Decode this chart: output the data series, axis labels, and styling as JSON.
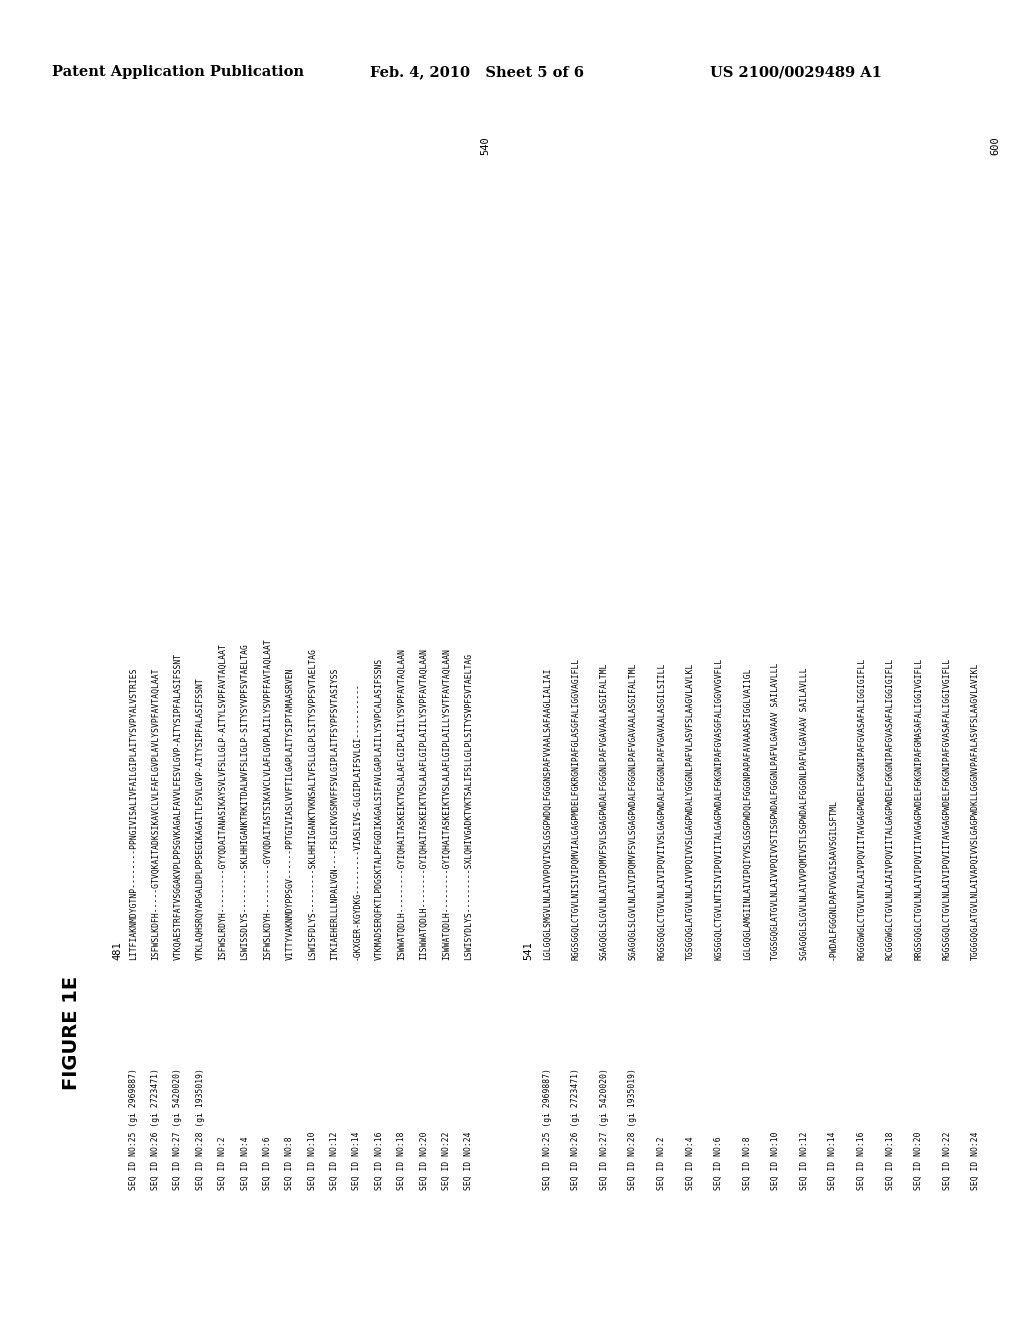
{
  "header_left": "Patent Application Publication",
  "header_center": "Feb. 4, 2010   Sheet 5 of 6",
  "header_right": "US 2100/0029489 A1",
  "figure_label": "FIGURE 1E",
  "background": "#ffffff",
  "block1_pos": "481",
  "block1_end": "540",
  "block1_rows": [
    {
      "seq_id": "SEQ ID NO:25 (gi 2969887)",
      "seq": "LITFIAKNMDYGTNP--------PPNGIVISALIVFAILGIPLAITYSVPYALVSTRIES"
    },
    {
      "seq_id": "SEQ ID NO:26 (gi 2723471)",
      "seq": "ISFWSLKDFH-----GTVQKAITADKSIKAVCLVLFAFLGVPLAVLYSVPFAVTAQLAAT"
    },
    {
      "seq_id": "SEQ ID NO:27 (gi 5420020)",
      "seq": "VTKQAESTRFATVSGGAKVPLPPSGVKAGALFAVVLFESVLGVP-AITYSIPFALASIFSSNT"
    },
    {
      "seq_id": "SEQ ID NO:28 (gi 1935019)",
      "seq": "VTKLAQHSRQYAPGALDPLPPSEGIKAGAITLFSVLGVP-AITYSIPFALASIFSSNT"
    },
    {
      "seq_id": "SEQ ID NO:2",
      "seq": "ISFWSLRDYH---------GYYQDAITANASIKAYSVLVFSLLGLP-AITYLSVPFAVTAQLAAT"
    },
    {
      "seq_id": "SEQ ID NO:4",
      "seq": "LSWISSDLYS---------SKLHHIGANKTRKITDALWVFSLIGLP-SITYSYVPFSVTAELTAG"
    },
    {
      "seq_id": "SEQ ID NO:6",
      "seq": "ISFWSLKDYH----------GYVQDAITASTSIKAVCLVLAFLGVPLAIILYSVPFFAVTAQLAAT"
    },
    {
      "seq_id": "SEQ ID NO:8",
      "seq": "VITTYVAKNMDYPPSGV------PPTGIVIASLVVFTILGAPLAITYSIPTAMAASRVEN"
    },
    {
      "seq_id": "SEQ ID NO:10",
      "seq": "LSWISFDLYS---------SKLHHIIGANKTVKNSALIVFSLLGLPLSITYSVPFSVTAELTAG"
    },
    {
      "seq_id": "SEQ ID NO:12",
      "seq": "ITKIAEHERLLLNPALVGN----FSLGIKVGSMVFFSVLGIPLAITFSYPFSVTASIYSS"
    },
    {
      "seq_id": "SEQ ID NO:14",
      "seq": "-GKXGER-KGYDKG---------VIASLIVS-GLGIPLAIFSVLGI-----------"
    },
    {
      "seq_id": "SEQ ID NO:16",
      "seq": "VTKMADSERQFKTLPDGSKTALPFGGDIKAGALSIFAVLGAPLAIILYSVPCALASIFSSNS"
    },
    {
      "seq_id": "SEQ ID NO:18",
      "seq": "ISWWATQDLH---------GYIQHAITASKEIKTVSLALAFLGIPLAIILYSVPFAVTAQLAAN"
    },
    {
      "seq_id": "SEQ ID NO:20",
      "seq": "IISWWATQDLH--------GYIQHAITASKEIKTVSLALAFLGIPLAIILYSVPFAVTAQLAAN"
    },
    {
      "seq_id": "SEQ ID NO:22",
      "seq": "ISWWATQDLH---------GYIQHAITASKEIKTVSLALAFLGIPLAILLYSVTFAVTAQLAAN"
    },
    {
      "seq_id": "SEQ ID NO:24",
      "seq": "LSWISYDLYS---------SXLQHIVGADKTVKTSALIFSLLGLPLSITYSVPFSVTAELTAG"
    }
  ],
  "block2_pos": "541",
  "block2_end": "600",
  "block2_rows": [
    {
      "seq_id": "SEQ ID NO:25 (gi 2969887)",
      "seq": "LGLGQGLSMGVLNLAIVVPQVIVSLGSGPWDQLFGGGNSPAFVVAALSAFAAGLIALIAI"
    },
    {
      "seq_id": "SEQ ID NO:26 (gi 2723471)",
      "seq": "RGGSGGQLCTGVLNISIVIPQMVIALGAGPMDELFGKRGNIPAFGLASGFALIGGVAGIFLL"
    },
    {
      "seq_id": "SEQ ID NO:27 (gi 5420020)",
      "seq": "SGAGQGLSLGVLNLAIVIPQMVFSVLSGAGPWDALFGGGNLPAFVGAVAALASGIFALTML"
    },
    {
      "seq_id": "SEQ ID NO:28 (gi 1935019)",
      "seq": "SGAGQGLSLGVLNLAIVIPQMVFSVLSGAGPWDALFGGGNLPAFVGAVAALASGIFALTML"
    },
    {
      "seq_id": "SEQ ID NO:2",
      "seq": "RGGSGQGLCTGVLNLAIVIPQVIIVSLGAGPWDALFGGGNLPAFVGAVAALASGILSIILL"
    },
    {
      "seq_id": "SEQ ID NO:4",
      "seq": "TGSGGQGLATGVLNLAIVVPQIVVSLGAGPWDALYGGGNLPAFVLASVFSLAAGVLAVLKL"
    },
    {
      "seq_id": "SEQ ID NO:6",
      "seq": "KGSGGQLCTGVLNTISIVIPQVIITALGAGPWDALFGKGNIPAFGVASGFALIGGVVGVFLL"
    },
    {
      "seq_id": "SEQ ID NO:8",
      "seq": "LGLGQGLAMGIINLAIVIPQIYVSLGSGPWDQLFGGGNPAPAFAVAAASFIGGLVAI1GL"
    },
    {
      "seq_id": "SEQ ID NO:10",
      "seq": "TGGSGQGLATGVLNLAIVVPQIVVSTISGPWDALFGGGNLPAFVLGAVAAV SAILAVLLL"
    },
    {
      "seq_id": "SEQ ID NO:12",
      "seq": "SGAGQGLSLGVLNLAIVVPQMIVSTLSGPWDALFGGGNLPAFVLGAVAAV SAILAVLLL"
    },
    {
      "seq_id": "SEQ ID NO:14",
      "seq": "-PWDALFGGGNLPAFVVGAISAAVSGILSFTML"
    },
    {
      "seq_id": "SEQ ID NO:16",
      "seq": "RGGGGWGLCTGVLNTALAIVPQVIITAVGAGPWDELFGKGNIPAFGVASAFALIGGIGIFLL"
    },
    {
      "seq_id": "SEQ ID NO:18",
      "seq": "RCGGGWGLCTGVLNLAIAIVPQVIITALGAGPWDELFGKGNIPAFGVASAFALIGGIGIFLL"
    },
    {
      "seq_id": "SEQ ID NO:20",
      "seq": "RRGSGQGLCTGVLNLAIVIPQVIITAVGAGPWDELFGKGNIPAFGMASAFALIGGIVGIFLL"
    },
    {
      "seq_id": "SEQ ID NO:22",
      "seq": "RGGSGGQLCTGVLNLAIVIPQVIITAVGAGPWDELFGKGNIPAFGVASAFALIGGIVGIFLL"
    },
    {
      "seq_id": "SEQ ID NO:24",
      "seq": "TGGGGQGLATGVLNLAIVAPQIVVSLGAGPWDKLLGGGNVPAFALASVFSLAAGVLAVIKL"
    }
  ]
}
